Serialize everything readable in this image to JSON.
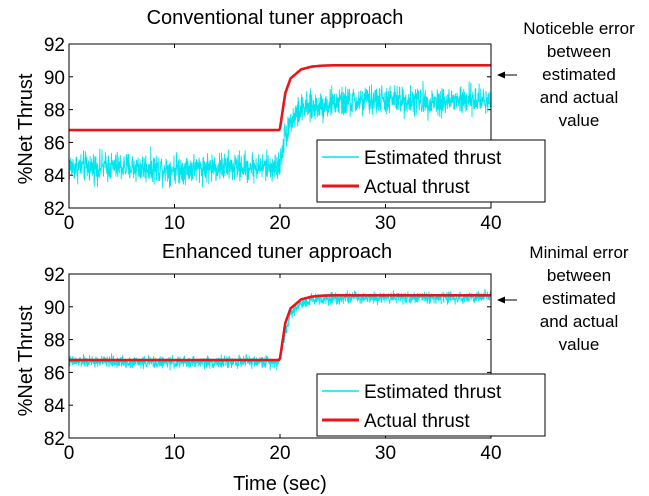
{
  "chart_data": [
    {
      "type": "line",
      "title": "Conventional tuner approach",
      "xlabel": "",
      "ylabel": "%Net Thrust",
      "xlim": [
        0,
        40
      ],
      "ylim": [
        82,
        92
      ],
      "xticks": [
        "0",
        "10",
        "20",
        "30",
        "40"
      ],
      "yticks": [
        "82",
        "84",
        "86",
        "88",
        "90",
        "92"
      ],
      "grid": false,
      "legend_position": "bottom-right",
      "step_time": 20,
      "series": [
        {
          "name": "Estimated thrust",
          "color": "#00e5ee",
          "style": "noisy",
          "x": [
            0,
            5,
            10,
            15,
            19.9,
            20.5,
            21,
            22,
            25,
            30,
            35,
            40
          ],
          "y": [
            84.5,
            84.5,
            84.4,
            84.5,
            84.5,
            86.5,
            87.3,
            88.0,
            88.4,
            88.6,
            88.5,
            88.6
          ],
          "noise_amplitude": 0.85
        },
        {
          "name": "Actual thrust",
          "color": "#e8161b",
          "style": "solid",
          "x": [
            0,
            19.9,
            20,
            20.5,
            21,
            22,
            23,
            24,
            25,
            30,
            40
          ],
          "y": [
            86.75,
            86.75,
            86.85,
            89.0,
            89.9,
            90.45,
            90.62,
            90.68,
            90.7,
            90.7,
            90.7
          ]
        }
      ],
      "annotation": {
        "lines": [
          "Noticeble error",
          "between",
          "estimated",
          "and actual",
          "value"
        ],
        "y": 90.75
      }
    },
    {
      "type": "line",
      "title": "Enhanced tuner approach",
      "xlabel": "Time (sec)",
      "ylabel": "%Net Thrust",
      "xlim": [
        0,
        40
      ],
      "ylim": [
        82,
        92
      ],
      "xticks": [
        "0",
        "10",
        "20",
        "30",
        "40"
      ],
      "yticks": [
        "82",
        "84",
        "86",
        "88",
        "90",
        "92"
      ],
      "grid": false,
      "legend_position": "bottom-right",
      "step_time": 20,
      "series": [
        {
          "name": "Estimated thrust",
          "color": "#00e5ee",
          "style": "noisy",
          "x": [
            0,
            5,
            10,
            15,
            19.9,
            20.5,
            21,
            22,
            23,
            25,
            30,
            35,
            40
          ],
          "y": [
            86.65,
            86.65,
            86.6,
            86.65,
            86.65,
            88.4,
            89.6,
            90.2,
            90.45,
            90.55,
            90.6,
            90.55,
            90.6
          ],
          "noise_amplitude": 0.35
        },
        {
          "name": "Actual thrust",
          "color": "#e8161b",
          "style": "solid",
          "x": [
            0,
            19.9,
            20,
            20.5,
            21,
            22,
            23,
            24,
            25,
            30,
            40
          ],
          "y": [
            86.75,
            86.75,
            86.85,
            89.0,
            89.9,
            90.45,
            90.62,
            90.68,
            90.7,
            90.7,
            90.7
          ]
        }
      ],
      "annotation": {
        "lines": [
          "Minimal error",
          "between",
          "estimated",
          "and actual",
          "value"
        ],
        "y": 90.75
      }
    }
  ]
}
